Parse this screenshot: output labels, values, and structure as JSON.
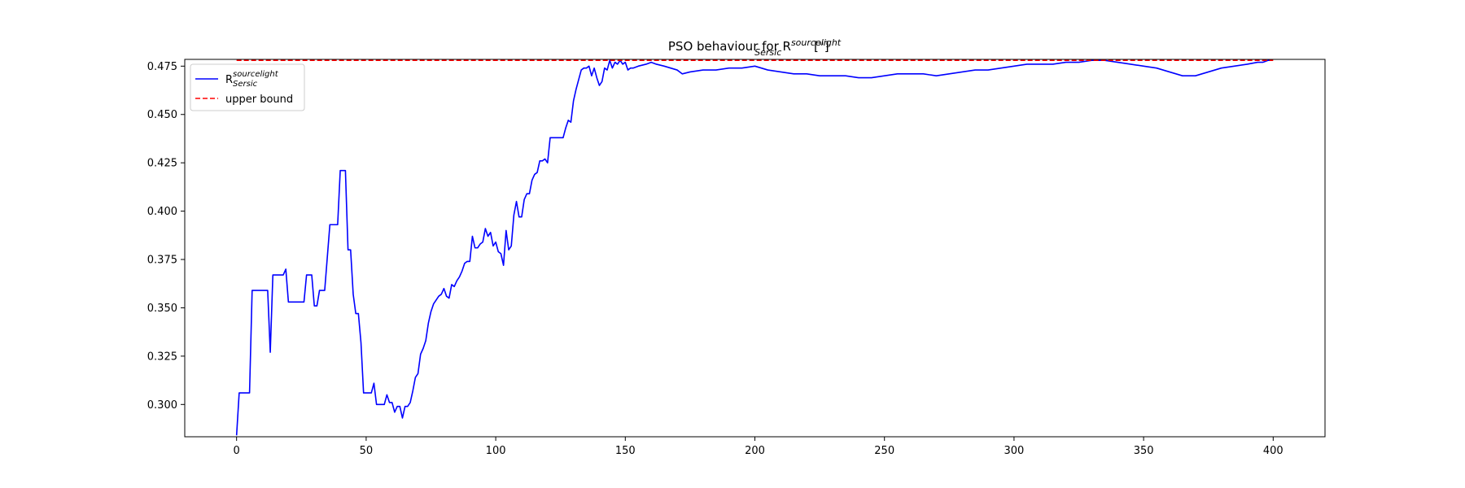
{
  "chart_data": {
    "type": "line",
    "title": {
      "prefix": "PSO behaviour for R",
      "superscript": "sourcelight",
      "subscript": "Sersic",
      "suffix": " [\"]"
    },
    "xlabel": "",
    "ylabel": "",
    "xlim": [
      -20,
      420
    ],
    "ylim": [
      0.2833,
      0.4785
    ],
    "xticks": [
      0,
      50,
      100,
      150,
      200,
      250,
      300,
      350,
      400
    ],
    "yticks": [
      0.3,
      0.325,
      0.35,
      0.375,
      0.4,
      0.425,
      0.45,
      0.475
    ],
    "grid": false,
    "legend": {
      "placement": "top-left"
    },
    "series": [
      {
        "legend_main": "R",
        "legend_superscript": "sourcelight",
        "legend_subscript": "Sersic",
        "color": "#0000ff",
        "style": "solid",
        "points": [
          [
            0,
            0.284
          ],
          [
            1,
            0.306
          ],
          [
            5,
            0.306
          ],
          [
            6,
            0.359
          ],
          [
            12,
            0.359
          ],
          [
            13,
            0.327
          ],
          [
            14,
            0.367
          ],
          [
            18,
            0.367
          ],
          [
            19,
            0.37
          ],
          [
            20,
            0.353
          ],
          [
            26,
            0.353
          ],
          [
            27,
            0.367
          ],
          [
            29,
            0.367
          ],
          [
            30,
            0.351
          ],
          [
            31,
            0.351
          ],
          [
            32,
            0.359
          ],
          [
            34,
            0.359
          ],
          [
            36,
            0.393
          ],
          [
            39,
            0.393
          ],
          [
            40,
            0.421
          ],
          [
            42,
            0.421
          ],
          [
            43,
            0.38
          ],
          [
            44,
            0.38
          ],
          [
            45,
            0.357
          ],
          [
            46,
            0.347
          ],
          [
            47,
            0.347
          ],
          [
            48,
            0.332
          ],
          [
            49,
            0.306
          ],
          [
            52,
            0.306
          ],
          [
            53,
            0.311
          ],
          [
            54,
            0.3
          ],
          [
            57,
            0.3
          ],
          [
            58,
            0.305
          ],
          [
            59,
            0.301
          ],
          [
            60,
            0.301
          ],
          [
            61,
            0.296
          ],
          [
            62,
            0.299
          ],
          [
            63,
            0.299
          ],
          [
            64,
            0.293
          ],
          [
            65,
            0.299
          ],
          [
            66,
            0.299
          ],
          [
            67,
            0.301
          ],
          [
            68,
            0.307
          ],
          [
            69,
            0.314
          ],
          [
            70,
            0.316
          ],
          [
            71,
            0.326
          ],
          [
            72,
            0.329
          ],
          [
            73,
            0.333
          ],
          [
            74,
            0.342
          ],
          [
            75,
            0.348
          ],
          [
            76,
            0.352
          ],
          [
            77,
            0.354
          ],
          [
            78,
            0.356
          ],
          [
            79,
            0.357
          ],
          [
            80,
            0.36
          ],
          [
            81,
            0.356
          ],
          [
            82,
            0.355
          ],
          [
            83,
            0.362
          ],
          [
            84,
            0.361
          ],
          [
            85,
            0.364
          ],
          [
            86,
            0.366
          ],
          [
            87,
            0.369
          ],
          [
            88,
            0.373
          ],
          [
            89,
            0.374
          ],
          [
            90,
            0.374
          ],
          [
            91,
            0.387
          ],
          [
            92,
            0.381
          ],
          [
            93,
            0.381
          ],
          [
            94,
            0.383
          ],
          [
            95,
            0.384
          ],
          [
            96,
            0.391
          ],
          [
            97,
            0.387
          ],
          [
            98,
            0.389
          ],
          [
            99,
            0.382
          ],
          [
            100,
            0.384
          ],
          [
            101,
            0.379
          ],
          [
            102,
            0.378
          ],
          [
            103,
            0.372
          ],
          [
            104,
            0.39
          ],
          [
            105,
            0.38
          ],
          [
            106,
            0.382
          ],
          [
            107,
            0.398
          ],
          [
            108,
            0.405
          ],
          [
            109,
            0.397
          ],
          [
            110,
            0.397
          ],
          [
            111,
            0.406
          ],
          [
            112,
            0.409
          ],
          [
            113,
            0.409
          ],
          [
            114,
            0.416
          ],
          [
            115,
            0.419
          ],
          [
            116,
            0.42
          ],
          [
            117,
            0.426
          ],
          [
            118,
            0.426
          ],
          [
            119,
            0.427
          ],
          [
            120,
            0.425
          ],
          [
            121,
            0.438
          ],
          [
            126,
            0.438
          ],
          [
            127,
            0.443
          ],
          [
            128,
            0.447
          ],
          [
            129,
            0.446
          ],
          [
            130,
            0.457
          ],
          [
            131,
            0.463
          ],
          [
            132,
            0.468
          ],
          [
            133,
            0.473
          ],
          [
            134,
            0.474
          ],
          [
            135,
            0.474
          ],
          [
            136,
            0.475
          ],
          [
            137,
            0.47
          ],
          [
            138,
            0.474
          ],
          [
            139,
            0.469
          ],
          [
            140,
            0.465
          ],
          [
            141,
            0.467
          ],
          [
            142,
            0.474
          ],
          [
            143,
            0.473
          ],
          [
            144,
            0.478
          ],
          [
            145,
            0.474
          ],
          [
            146,
            0.477
          ],
          [
            147,
            0.476
          ],
          [
            148,
            0.478
          ],
          [
            149,
            0.476
          ],
          [
            150,
            0.477
          ],
          [
            151,
            0.473
          ],
          [
            152,
            0.474
          ],
          [
            153,
            0.474
          ],
          [
            155,
            0.475
          ],
          [
            158,
            0.476
          ],
          [
            160,
            0.477
          ],
          [
            162,
            0.476
          ],
          [
            165,
            0.475
          ],
          [
            170,
            0.473
          ],
          [
            172,
            0.471
          ],
          [
            175,
            0.472
          ],
          [
            180,
            0.473
          ],
          [
            185,
            0.473
          ],
          [
            190,
            0.474
          ],
          [
            195,
            0.474
          ],
          [
            200,
            0.475
          ],
          [
            205,
            0.473
          ],
          [
            210,
            0.472
          ],
          [
            215,
            0.471
          ],
          [
            220,
            0.471
          ],
          [
            225,
            0.47
          ],
          [
            230,
            0.47
          ],
          [
            235,
            0.47
          ],
          [
            240,
            0.469
          ],
          [
            245,
            0.469
          ],
          [
            250,
            0.47
          ],
          [
            255,
            0.471
          ],
          [
            260,
            0.471
          ],
          [
            265,
            0.471
          ],
          [
            270,
            0.47
          ],
          [
            275,
            0.471
          ],
          [
            280,
            0.472
          ],
          [
            285,
            0.473
          ],
          [
            290,
            0.473
          ],
          [
            295,
            0.474
          ],
          [
            300,
            0.475
          ],
          [
            305,
            0.476
          ],
          [
            310,
            0.476
          ],
          [
            315,
            0.476
          ],
          [
            320,
            0.477
          ],
          [
            325,
            0.477
          ],
          [
            330,
            0.478
          ],
          [
            335,
            0.478
          ],
          [
            340,
            0.477
          ],
          [
            345,
            0.476
          ],
          [
            350,
            0.475
          ],
          [
            355,
            0.474
          ],
          [
            360,
            0.472
          ],
          [
            365,
            0.47
          ],
          [
            370,
            0.47
          ],
          [
            375,
            0.472
          ],
          [
            380,
            0.474
          ],
          [
            385,
            0.475
          ],
          [
            390,
            0.476
          ],
          [
            394,
            0.477
          ],
          [
            396,
            0.477
          ],
          [
            398,
            0.478
          ],
          [
            399,
            0.478
          ]
        ]
      },
      {
        "name": "upper bound",
        "color": "#ff0000",
        "style": "dashed",
        "points": [
          [
            0,
            0.478
          ],
          [
            400,
            0.478
          ]
        ]
      }
    ]
  }
}
